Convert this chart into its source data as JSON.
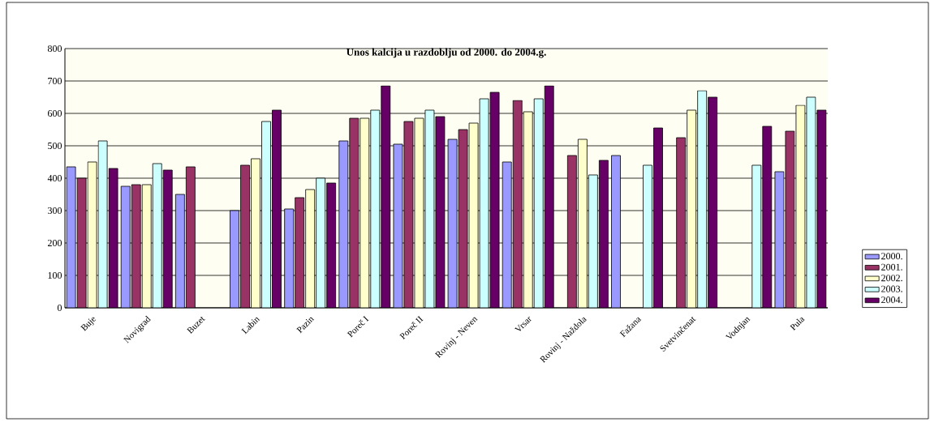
{
  "chart_data": {
    "type": "bar",
    "title": "Unos kalcija u razdoblju od 2000. do 2004.g.",
    "categories": [
      "Buje",
      "Novigrad",
      "Buzet",
      "Labin",
      "Pazin",
      "Poreč I",
      "Poreč II",
      "Rovinj - Neven",
      "Vrsar",
      "Rovinj - Naždola",
      "Fažana",
      "Svetvinčenat",
      "Vodnjan",
      "Pula"
    ],
    "series": [
      {
        "name": "2000.",
        "color": "#9999ff",
        "values": [
          435,
          375,
          350,
          300,
          305,
          515,
          505,
          520,
          450,
          null,
          470,
          null,
          null,
          420
        ]
      },
      {
        "name": "2001.",
        "color": "#993366",
        "values": [
          400,
          380,
          435,
          440,
          340,
          585,
          575,
          550,
          640,
          470,
          null,
          525,
          null,
          545
        ]
      },
      {
        "name": "2002.",
        "color": "#ffffcc",
        "values": [
          450,
          380,
          null,
          460,
          365,
          585,
          585,
          570,
          605,
          520,
          null,
          610,
          null,
          625
        ]
      },
      {
        "name": "2003.",
        "color": "#ccffff",
        "values": [
          515,
          445,
          null,
          575,
          400,
          610,
          610,
          645,
          645,
          410,
          440,
          670,
          440,
          650
        ]
      },
      {
        "name": "2004.",
        "color": "#660066",
        "values": [
          430,
          425,
          null,
          610,
          385,
          685,
          590,
          665,
          685,
          455,
          555,
          650,
          560,
          610
        ]
      }
    ],
    "ylim": [
      0,
      800
    ],
    "yticks": [
      0,
      100,
      200,
      300,
      400,
      500,
      600,
      700,
      800
    ],
    "grid": "y",
    "legend": "right"
  }
}
